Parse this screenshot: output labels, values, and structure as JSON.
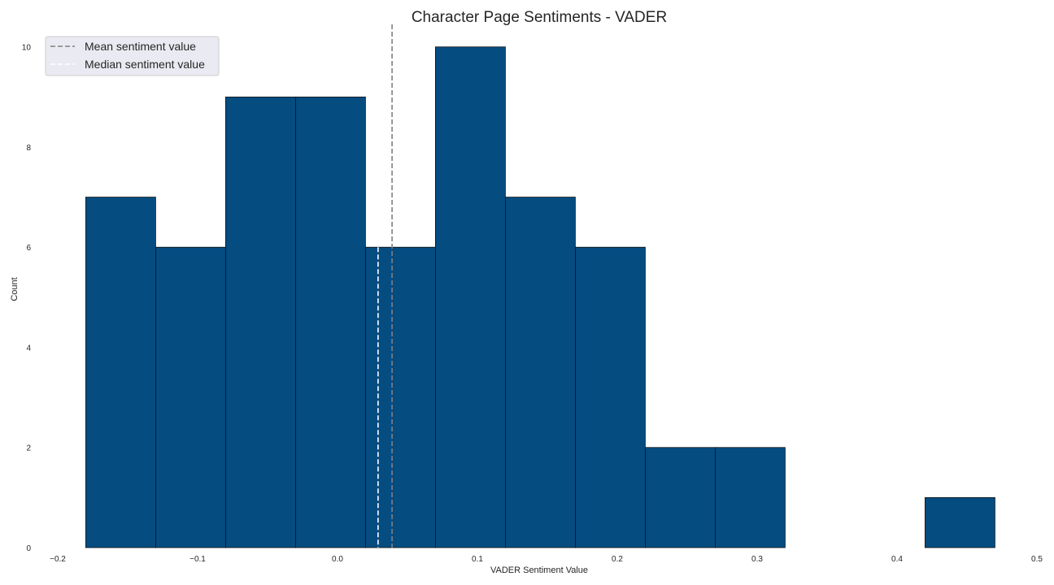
{
  "chart_data": {
    "type": "bar",
    "title": "Character Page Sentiments - VADER",
    "xlabel": "VADER Sentiment Value",
    "ylabel": "Count",
    "xlim": [
      -0.2,
      0.5
    ],
    "ylim": [
      0,
      10.45
    ],
    "x_ticks": [
      "−0.2",
      "−0.1",
      "0.0",
      "0.1",
      "0.2",
      "0.3",
      "0.4",
      "0.5"
    ],
    "y_ticks": [
      "0",
      "2",
      "4",
      "6",
      "8",
      "10"
    ],
    "bin_edges": [
      -0.18,
      -0.13,
      -0.08,
      -0.03,
      0.02,
      0.07,
      0.12,
      0.17,
      0.22,
      0.27,
      0.32,
      0.37,
      0.42,
      0.47
    ],
    "counts": [
      7,
      6,
      9,
      9,
      6,
      10,
      7,
      6,
      2,
      2,
      0,
      0,
      1
    ],
    "bar_color": "#054c80",
    "edge_color": "#111111",
    "mean": 0.039,
    "median": 0.029,
    "grid": false,
    "legend": {
      "placement": "top-left",
      "entries": [
        {
          "label": "Mean sentiment value",
          "color": "#808080",
          "style": "dashed"
        },
        {
          "label": "Median sentiment value",
          "color": "#ffffff",
          "style": "dashed"
        }
      ]
    }
  }
}
